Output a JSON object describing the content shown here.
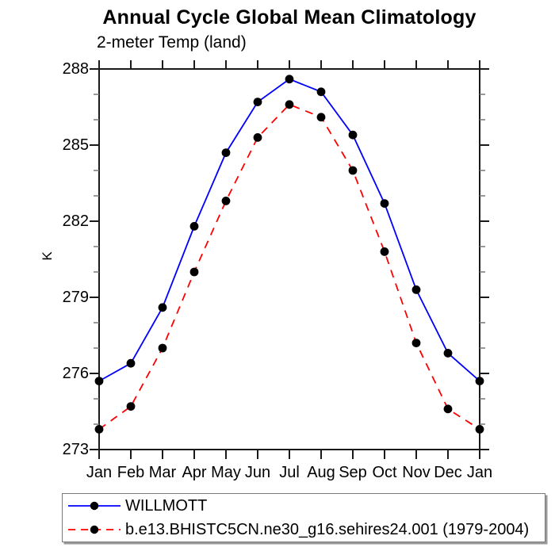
{
  "title": "Annual Cycle Global Mean Climatology",
  "subtitle": "2-meter Temp (land)",
  "chart_data": {
    "type": "line",
    "title": "Annual Cycle Global Mean Climatology",
    "subtitle": "2-meter Temp (land)",
    "xlabel": "",
    "ylabel": "K",
    "ylim": [
      273,
      288
    ],
    "ytick_step": 3,
    "yminor_step": 1,
    "grid": false,
    "legend_position": "bottom",
    "x": [
      "Jan",
      "Feb",
      "Mar",
      "Apr",
      "May",
      "Jun",
      "Jul",
      "Aug",
      "Sep",
      "Oct",
      "Nov",
      "Dec",
      "Jan"
    ],
    "marker": "filled-circle",
    "marker_color": "#000000",
    "series": [
      {
        "name": "WILLMOTT",
        "color": "#0000ff",
        "line_style": "solid",
        "values": [
          275.7,
          276.4,
          278.6,
          281.8,
          284.7,
          286.7,
          287.6,
          287.1,
          285.4,
          282.7,
          279.3,
          276.8,
          275.7
        ]
      },
      {
        "name": "b.e13.BHISTC5CN.ne30_g16.sehires24.001 (1979-2004)",
        "color": "#ff0000",
        "line_style": "dashed",
        "values": [
          273.8,
          274.7,
          277.0,
          280.0,
          282.8,
          285.3,
          286.6,
          286.1,
          284.0,
          280.8,
          277.2,
          274.6,
          273.8
        ]
      }
    ]
  }
}
